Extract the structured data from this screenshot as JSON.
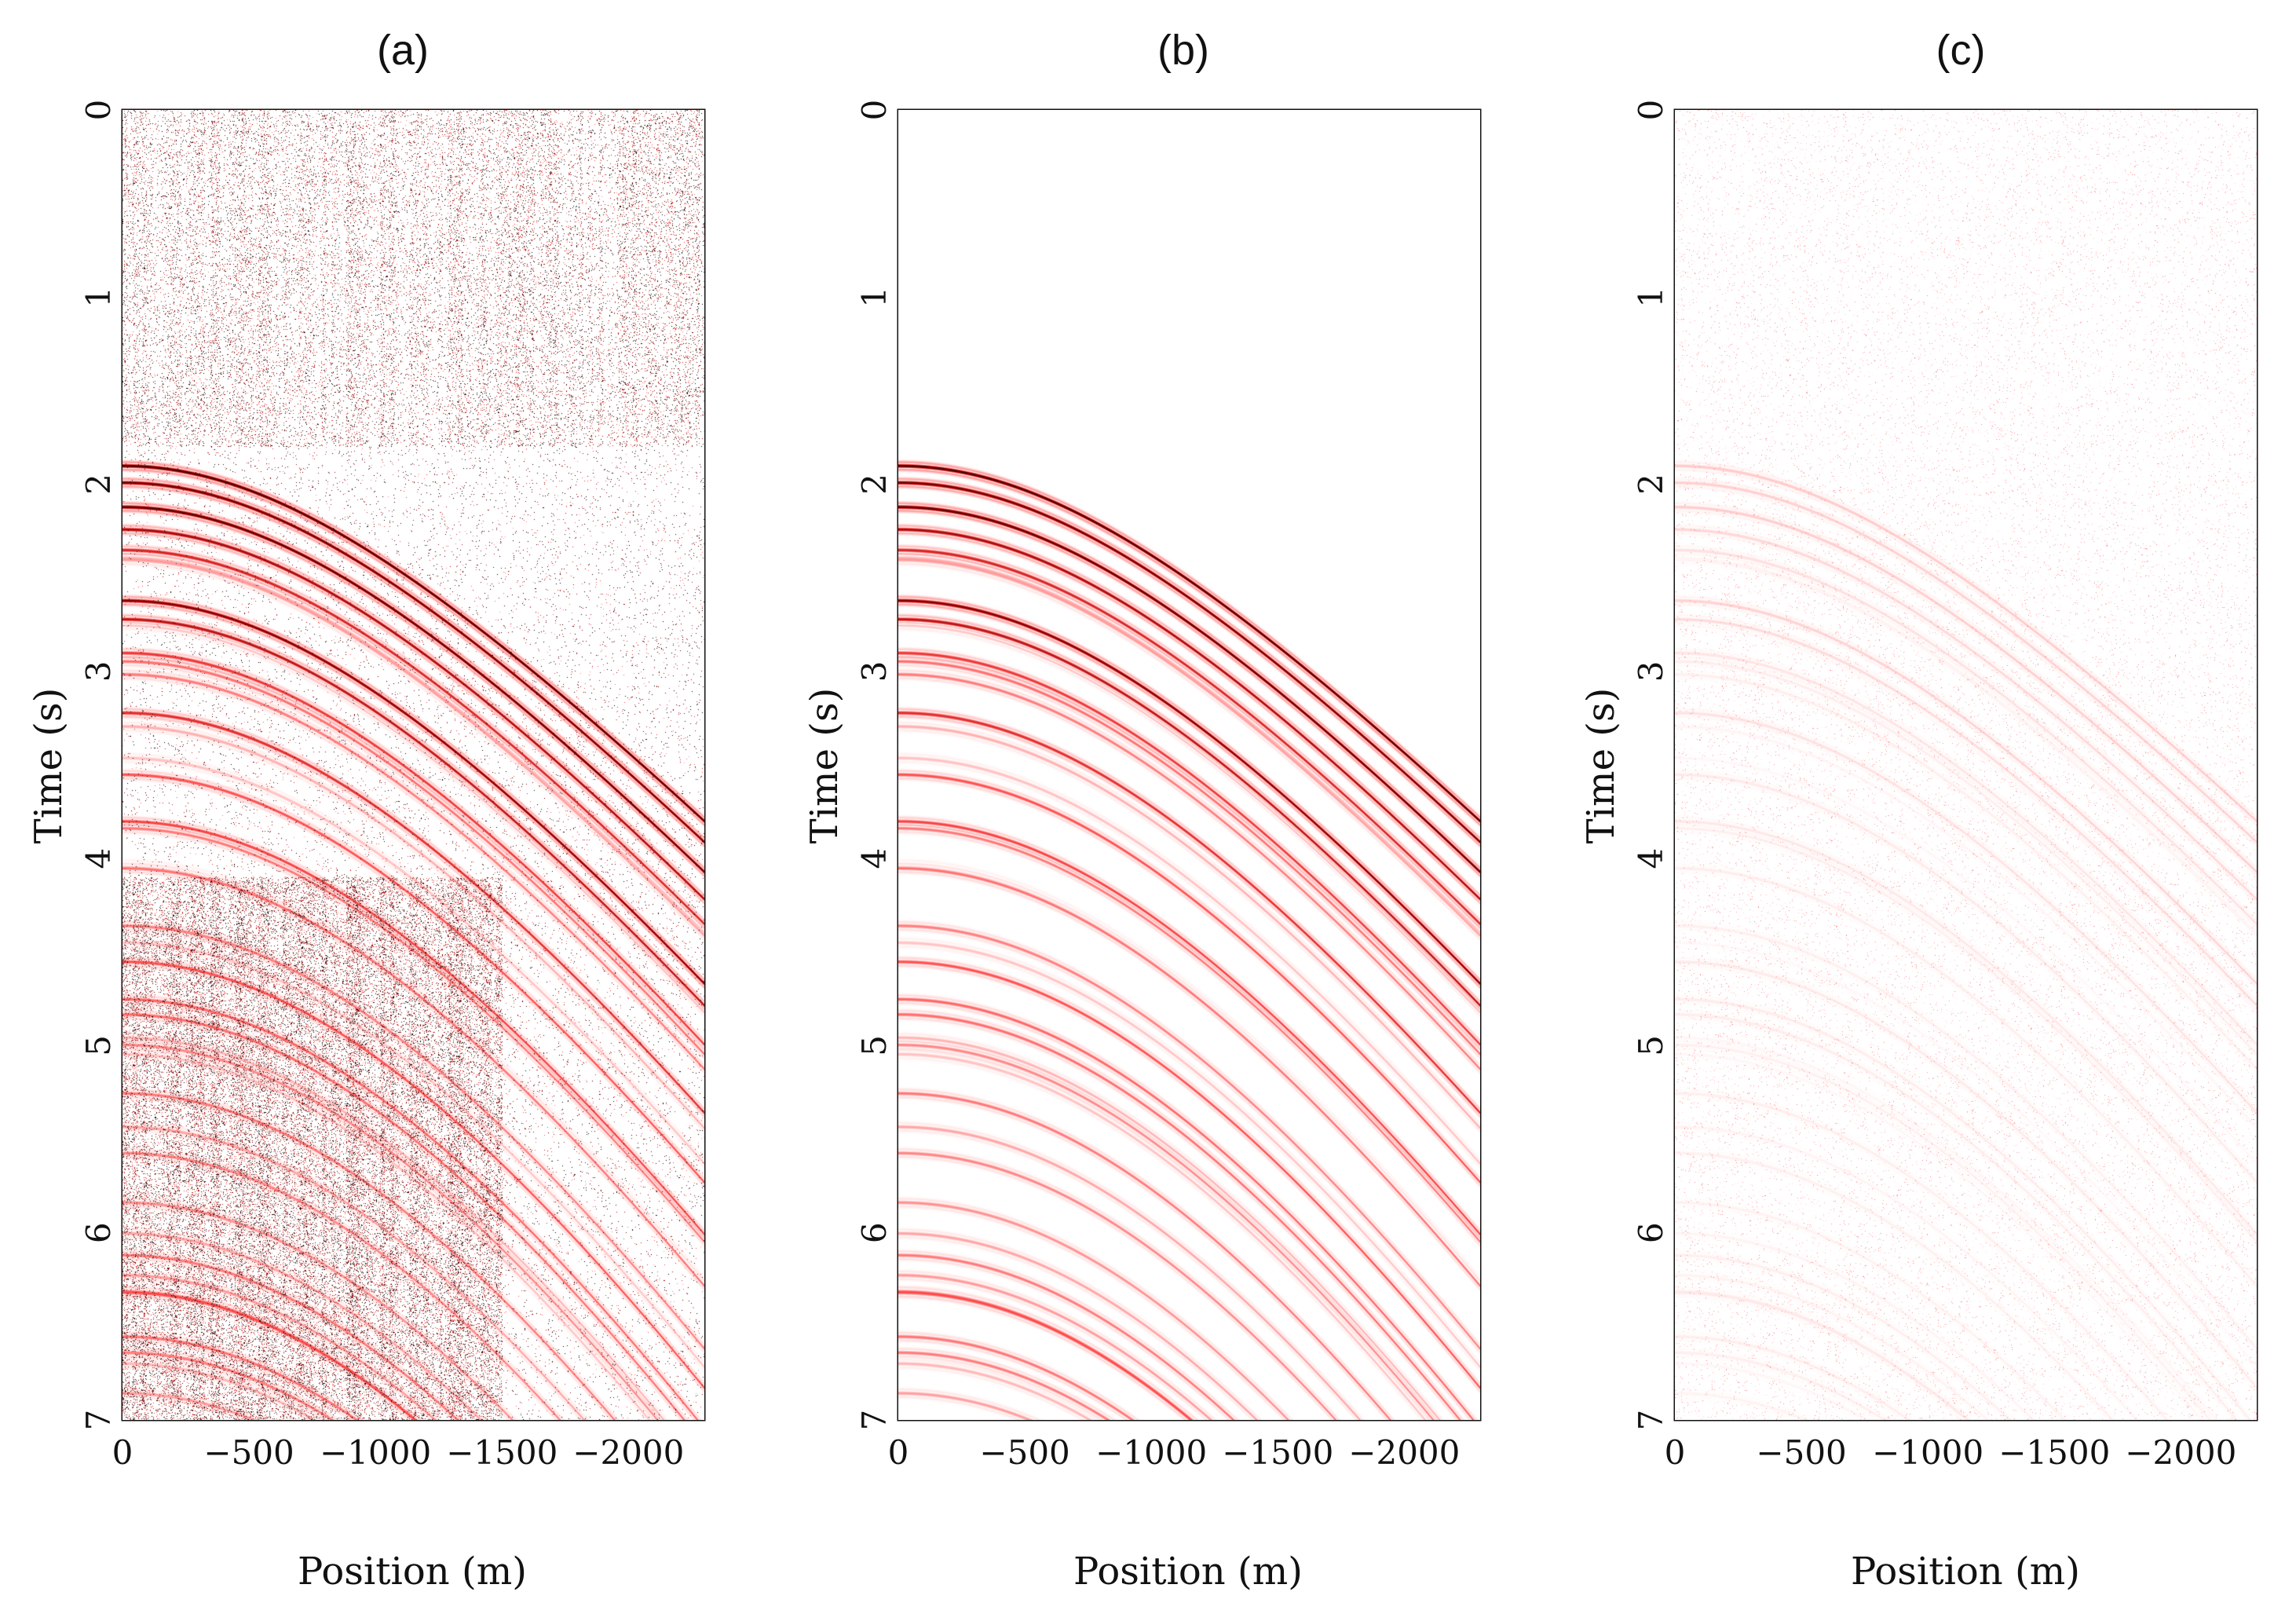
{
  "chart_data": [
    {
      "type": "heatmap",
      "panel": "a",
      "title": "(a)",
      "xlabel": "Position (m)",
      "ylabel": "Time (s)",
      "xticks": [
        0,
        -500,
        -1000,
        -1500,
        -2000
      ],
      "yticks": [
        0,
        1,
        2,
        3,
        4,
        5,
        6,
        7
      ],
      "xtick_labels": [
        "0",
        "−500",
        "−1000",
        "−1500",
        "−2000"
      ],
      "ytick_labels": [
        "0",
        "1",
        "2",
        "3",
        "4",
        "5",
        "6",
        "7"
      ],
      "xlim": [
        0,
        -2300
      ],
      "ylim": [
        0,
        7
      ],
      "content": "noisy shot gather: coherent hyperbolic reflections plus strong random spike noise",
      "reflections": {
        "apex_time_s": 1.9,
        "time_at_max_offset_s": 3.8
      },
      "noise_level": 1.0,
      "colormap": [
        "#ffffff",
        "#ff4a4a",
        "#8b0000",
        "#000000"
      ]
    },
    {
      "type": "heatmap",
      "panel": "b",
      "title": "(b)",
      "xlabel": "Position (m)",
      "ylabel": "Time (s)",
      "xticks": [
        0,
        -500,
        -1000,
        -1500,
        -2000
      ],
      "yticks": [
        0,
        1,
        2,
        3,
        4,
        5,
        6,
        7
      ],
      "xtick_labels": [
        "0",
        "−500",
        "−1000",
        "−1500",
        "−2000"
      ],
      "ytick_labels": [
        "0",
        "1",
        "2",
        "3",
        "4",
        "5",
        "6",
        "7"
      ],
      "xlim": [
        0,
        -2300
      ],
      "ylim": [
        0,
        7
      ],
      "content": "denoised shot gather: hyperbolic reflections, noise removed",
      "reflections": {
        "apex_time_s": 1.9,
        "time_at_max_offset_s": 3.8
      },
      "noise_level": 0.0,
      "colormap": [
        "#ffffff",
        "#ff4a4a",
        "#8b0000",
        "#000000"
      ]
    },
    {
      "type": "heatmap",
      "panel": "c",
      "title": "(c)",
      "xlabel": "Position (m)",
      "ylabel": "Time (s)",
      "xticks": [
        0,
        -500,
        -1000,
        -1500,
        -2000
      ],
      "yticks": [
        0,
        1,
        2,
        3,
        4,
        5,
        6,
        7
      ],
      "xtick_labels": [
        "0",
        "−500",
        "−1000",
        "−1500",
        "−2000"
      ],
      "ytick_labels": [
        "0",
        "1",
        "2",
        "3",
        "4",
        "5",
        "6",
        "7"
      ],
      "xlim": [
        0,
        -2300
      ],
      "ylim": [
        0,
        7
      ],
      "content": "difference (a) minus (b): faint residual",
      "reflections": {
        "apex_time_s": 1.9,
        "time_at_max_offset_s": 3.8
      },
      "noise_level": 0.15,
      "colormap": [
        "#ffffff",
        "#ff4a4a",
        "#8b0000",
        "#000000"
      ]
    }
  ]
}
